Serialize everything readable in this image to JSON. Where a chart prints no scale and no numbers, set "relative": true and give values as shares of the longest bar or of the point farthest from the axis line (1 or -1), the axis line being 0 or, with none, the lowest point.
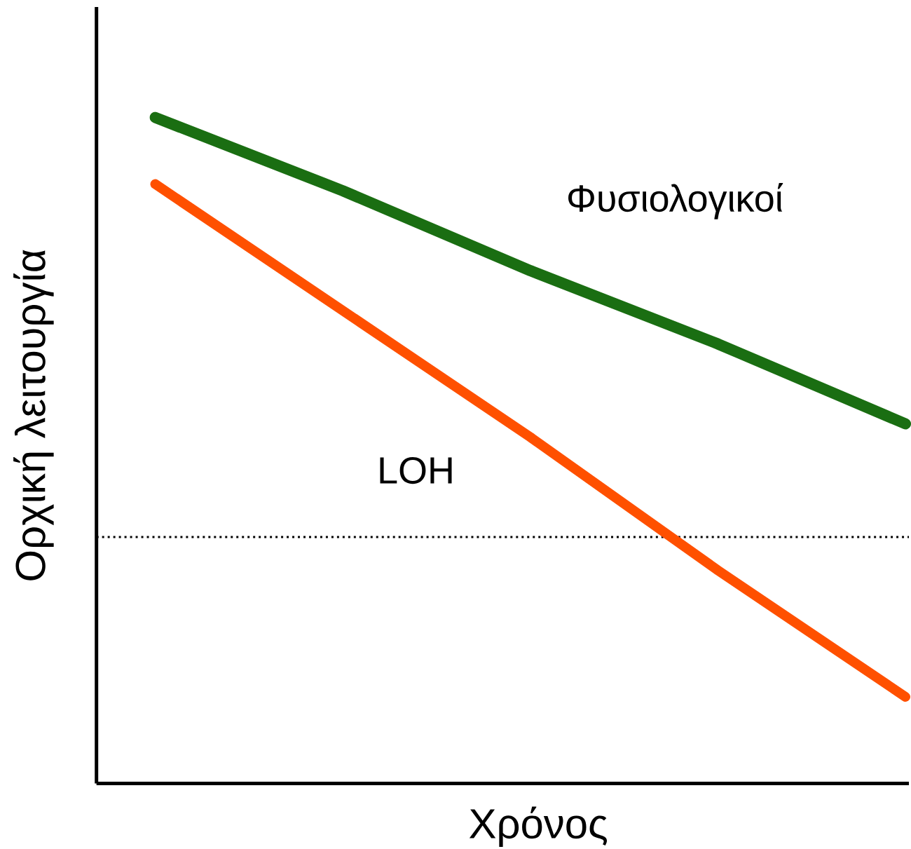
{
  "chart_data": {
    "type": "line",
    "relative": true,
    "xlabel": "Χρόνος",
    "ylabel": "Ορχική λειτουργία",
    "categories": [
      null,
      null,
      null,
      null,
      null
    ],
    "series": [
      {
        "name": "Φυσιολογικοί",
        "color": "#1a6e12",
        "values": [
          1.0,
          0.89,
          0.77,
          0.66,
          0.54
        ]
      },
      {
        "name": "LOH",
        "color": "#ff5000",
        "values": [
          0.9,
          0.71,
          0.52,
          0.32,
          0.13
        ]
      }
    ],
    "ref_lines": [
      {
        "axis": "y",
        "value": 0.37,
        "color": "#000000",
        "line_style": "dotted"
      }
    ],
    "line_style": "solid",
    "marker": "none"
  }
}
